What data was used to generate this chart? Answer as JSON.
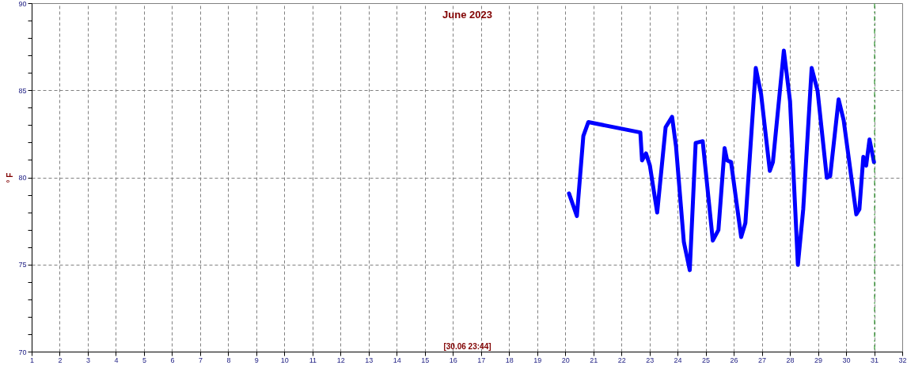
{
  "chart_data": {
    "type": "line",
    "title": "June 2023",
    "ylabel": "° F",
    "annotations": [
      "[30.06 23:44]"
    ],
    "x": [
      20.12,
      20.4,
      20.63,
      20.81,
      22.66,
      22.72,
      22.86,
      23.0,
      23.26,
      23.56,
      23.79,
      23.93,
      24.21,
      24.42,
      24.63,
      24.88,
      25.24,
      25.44,
      25.66,
      25.75,
      25.89,
      26.25,
      26.4,
      26.77,
      26.96,
      27.27,
      27.38,
      27.77,
      27.99,
      28.27,
      28.46,
      28.76,
      28.97,
      29.3,
      29.42,
      29.72,
      29.9,
      30.35,
      30.46,
      30.6,
      30.7,
      30.82,
      30.98
    ],
    "series": [
      {
        "color": "#0000ff",
        "values": [
          79.1,
          77.8,
          82.4,
          83.2,
          82.6,
          81.0,
          81.4,
          80.7,
          78.0,
          82.9,
          83.5,
          81.8,
          76.3,
          74.7,
          82.0,
          82.1,
          76.4,
          77.0,
          81.7,
          81.0,
          80.9,
          76.6,
          77.4,
          86.3,
          84.8,
          80.4,
          80.9,
          87.3,
          84.4,
          75.0,
          78.2,
          86.3,
          85.0,
          80.0,
          80.1,
          84.5,
          83.3,
          77.9,
          78.2,
          81.2,
          80.7,
          82.2,
          80.9
        ]
      }
    ],
    "xlim": [
      1,
      32
    ],
    "ylim": [
      70,
      90
    ],
    "xticks": [
      1,
      2,
      3,
      4,
      5,
      6,
      7,
      8,
      9,
      10,
      11,
      12,
      13,
      14,
      15,
      16,
      17,
      18,
      19,
      20,
      21,
      22,
      23,
      24,
      25,
      26,
      27,
      28,
      29,
      30,
      31,
      32
    ],
    "yticks": [
      70,
      {
        "value": 71,
        "label": null
      },
      {
        "value": 72,
        "label": null
      },
      {
        "value": 73,
        "label": null
      },
      {
        "value": 74,
        "label": null
      },
      75,
      {
        "value": 76,
        "label": null
      },
      {
        "value": 77,
        "label": null
      },
      {
        "value": 78,
        "label": null
      },
      {
        "value": 79,
        "label": null
      },
      80,
      {
        "value": 81,
        "label": null
      },
      {
        "value": 82,
        "label": null
      },
      {
        "value": 83,
        "label": null
      },
      {
        "value": 84,
        "label": null
      },
      85,
      {
        "value": 86,
        "label": null
      },
      {
        "value": 87,
        "label": null
      },
      {
        "value": 88,
        "label": null
      },
      {
        "value": 89,
        "label": null
      },
      90
    ],
    "grid": true,
    "marker": "none",
    "line_style": "solid",
    "ref_lines": [
      {
        "axis": "x",
        "value": 31,
        "label": null,
        "color": "#008000",
        "line_style": "dashdot"
      }
    ]
  }
}
